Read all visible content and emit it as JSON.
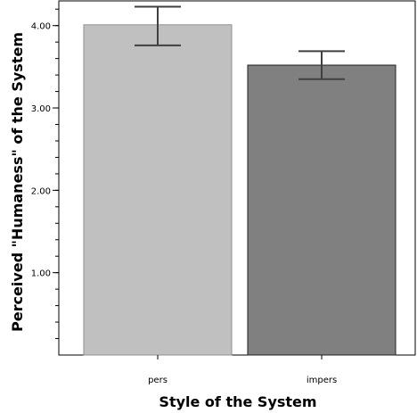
{
  "chart_data": {
    "type": "bar",
    "categories": [
      "pers",
      "impers"
    ],
    "values": [
      4.01,
      3.52
    ],
    "error_bars": [
      {
        "low": 3.76,
        "high": 4.23
      },
      {
        "low": 3.35,
        "high": 3.69
      }
    ],
    "colors": [
      "#c0c0c0",
      "#808080"
    ],
    "xlabel": "Style of the System",
    "ylabel": "Perceived \"Humaness\" of the System",
    "ylim": [
      0,
      4.3
    ],
    "yticks": [
      {
        "value": 1,
        "label": "1.00"
      },
      {
        "value": 2,
        "label": "2.00"
      },
      {
        "value": 3,
        "label": "3.00"
      },
      {
        "value": 4,
        "label": "4.00"
      }
    ],
    "minor_tick_step": 0.2,
    "grid": false
  }
}
